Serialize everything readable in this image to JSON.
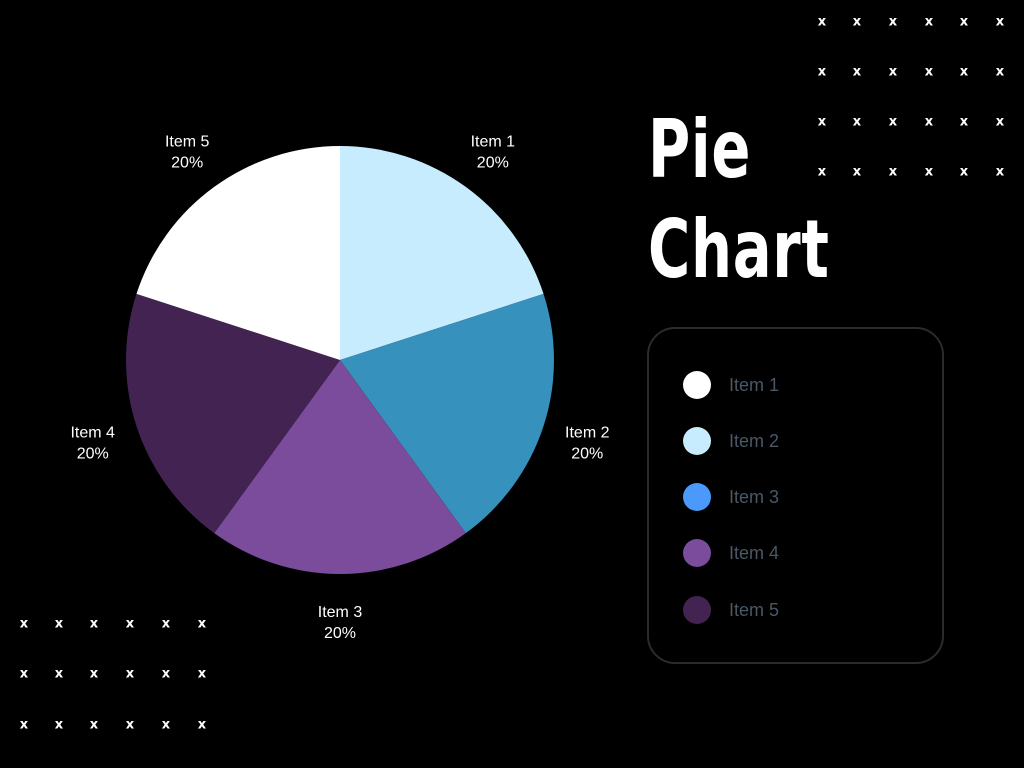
{
  "title": {
    "line1": "Pie",
    "line2": "Chart"
  },
  "chart_data": {
    "type": "pie",
    "slices": [
      {
        "label": "Item 1",
        "value": 20,
        "pct_label": "20%",
        "color": "#c7ecfd"
      },
      {
        "label": "Item 2",
        "value": 20,
        "pct_label": "20%",
        "color": "#3691bd"
      },
      {
        "label": "Item 3",
        "value": 20,
        "pct_label": "20%",
        "color": "#7b4b9c"
      },
      {
        "label": "Item 4",
        "value": 20,
        "pct_label": "20%",
        "color": "#432352"
      },
      {
        "label": "Item 5",
        "value": 20,
        "pct_label": "20%",
        "color": "#ffffff"
      }
    ],
    "direction": "clockwise-from-top"
  },
  "legend": {
    "items": [
      {
        "label": "Item 1",
        "color": "#ffffff"
      },
      {
        "label": "Item 2",
        "color": "#c7ecfd"
      },
      {
        "label": "Item 3",
        "color": "#4a99fb"
      },
      {
        "label": "Item 4",
        "color": "#7b4b9c"
      },
      {
        "label": "Item 5",
        "color": "#432352"
      }
    ]
  },
  "decorations": {
    "mark_glyph": "x",
    "mark_color": "#ffffff"
  }
}
